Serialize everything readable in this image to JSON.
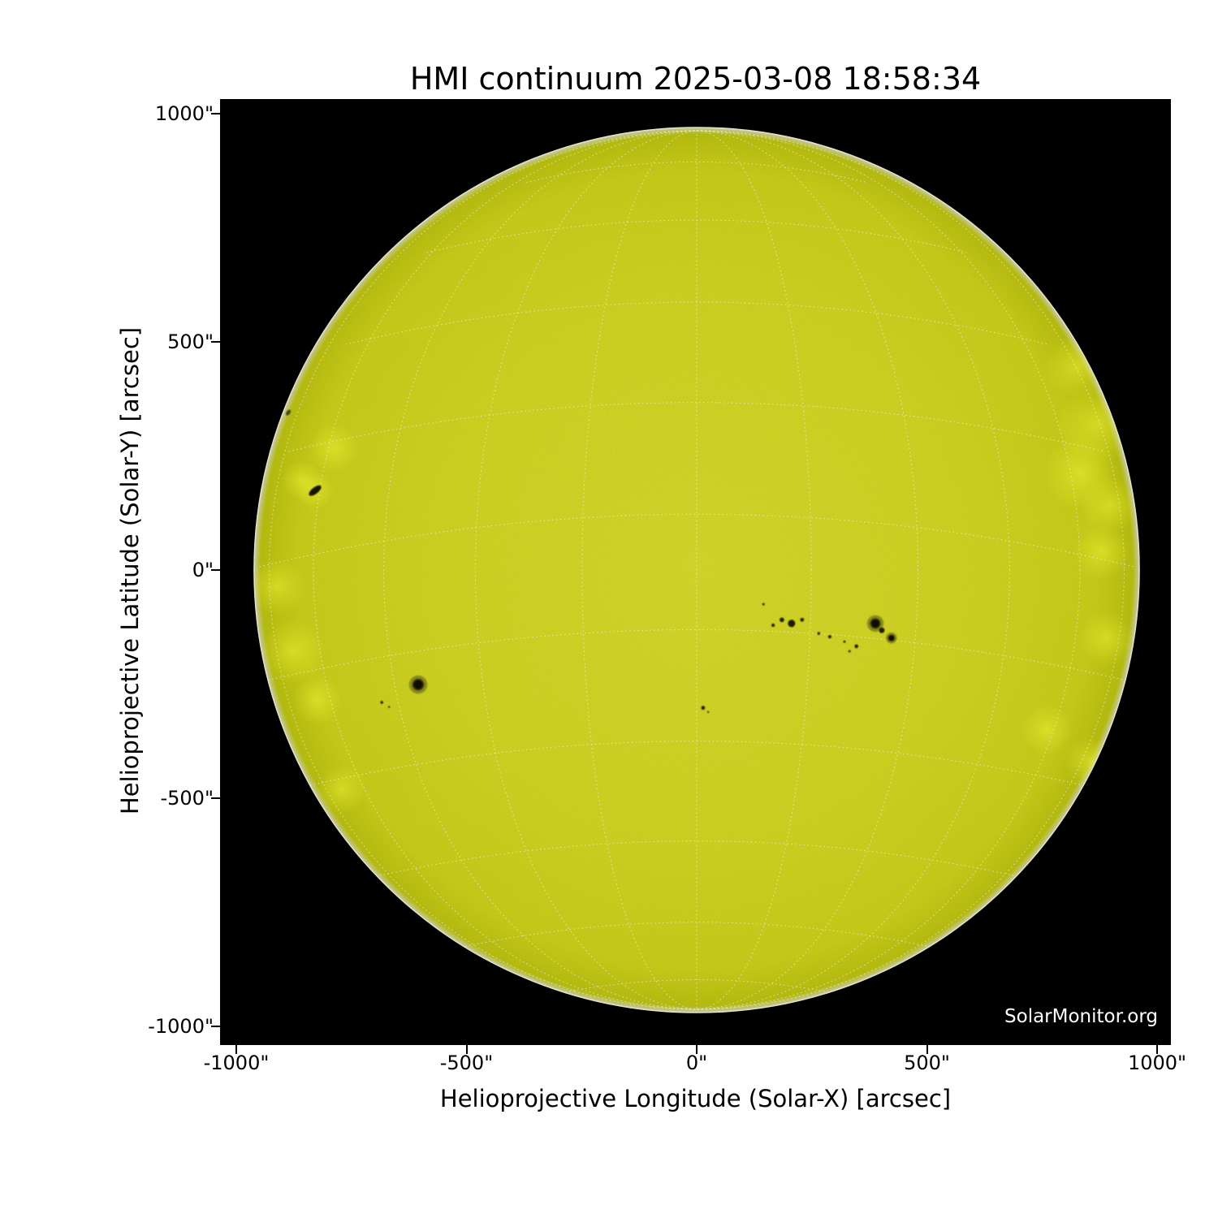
{
  "chart_data": {
    "type": "heatmap",
    "description": "Full-disk solar continuum image (SDO/HMI) rendered as a yellow solar disk on black background with dotted heliographic coordinate grid, sunspot groups and limb faculae",
    "title": "HMI continuum 2025-03-08 18:58:34",
    "xlabel": "Helioprojective Longitude (Solar-X) [arcsec]",
    "ylabel": "Helioprojective Latitude (Solar-Y) [arcsec]",
    "xlim": [
      -1035,
      1030
    ],
    "ylim": [
      -1040,
      1032
    ],
    "x_ticks": [
      {
        "value": -1000,
        "label": "-1000\""
      },
      {
        "value": -500,
        "label": "-500\""
      },
      {
        "value": 0,
        "label": "0\""
      },
      {
        "value": 500,
        "label": "500\""
      },
      {
        "value": 1000,
        "label": "1000\""
      }
    ],
    "y_ticks": [
      {
        "value": 1000,
        "label": "1000\""
      },
      {
        "value": 500,
        "label": "500\""
      },
      {
        "value": 0,
        "label": "0\""
      },
      {
        "value": -500,
        "label": "-500\""
      },
      {
        "value": -1000,
        "label": "-1000\""
      }
    ],
    "grid": {
      "kind": "heliographic",
      "spacing_deg": 15,
      "b0_deg": -7.25,
      "style": "dotted",
      "color": "#f2f2e6"
    },
    "solar_disk": {
      "center_arcsec": [
        0,
        0
      ],
      "radius_arcsec": 963,
      "fill_center": "#d2d32a",
      "fill_mid": "#cccf20",
      "fill_edge": "#b4ba0e",
      "limb_rim": "#e3e3d4",
      "background": "#000000",
      "speckle_dark": "#6b6b05",
      "speckle_light": "#ffff59"
    },
    "sunspots": [
      {
        "x": -829,
        "y": 174,
        "rx": 16,
        "ry": 7,
        "rot": -38,
        "color": "#181802"
      },
      {
        "x": -887,
        "y": 345,
        "rx": 7,
        "ry": 4,
        "rot": -55,
        "color": "#45450a"
      },
      {
        "x": -605,
        "y": -251,
        "penumbra_r": 20,
        "umbra_r": 10
      },
      {
        "x": -684,
        "y": -290,
        "r": 3
      },
      {
        "x": -668,
        "y": -300,
        "r": 2
      },
      {
        "x": 145,
        "y": -75,
        "r": 2.5
      },
      {
        "x": 166,
        "y": -121,
        "r": 3.5
      },
      {
        "x": 185,
        "y": -109,
        "r": 5
      },
      {
        "x": 206,
        "y": -117,
        "r": 8
      },
      {
        "x": 229,
        "y": -109,
        "r": 4
      },
      {
        "x": 265,
        "y": -139,
        "r": 3
      },
      {
        "x": 289,
        "y": -146,
        "r": 3.5
      },
      {
        "x": 321,
        "y": -157,
        "r": 2.5
      },
      {
        "x": 347,
        "y": -167,
        "r": 4
      },
      {
        "x": 332,
        "y": -178,
        "r": 2.5
      },
      {
        "x": 388,
        "y": -117,
        "penumbra_r": 18,
        "umbra_r": 9
      },
      {
        "x": 402,
        "y": -132,
        "r": 6
      },
      {
        "x": 423,
        "y": -149,
        "penumbra_r": 12,
        "umbra_r": 6
      },
      {
        "x": 14,
        "y": -302,
        "r": 4
      },
      {
        "x": 25,
        "y": -311,
        "r": 2
      }
    ],
    "faculae": [
      {
        "x": 825,
        "y": 445,
        "r": 70
      },
      {
        "x": 870,
        "y": 320,
        "r": 88
      },
      {
        "x": 834,
        "y": 213,
        "r": 80
      },
      {
        "x": 896,
        "y": 142,
        "r": 62
      },
      {
        "x": 880,
        "y": 40,
        "r": 60
      },
      {
        "x": 890,
        "y": -150,
        "r": 60
      },
      {
        "x": 855,
        "y": -420,
        "r": 55
      },
      {
        "x": -912,
        "y": -36,
        "r": 62
      },
      {
        "x": -877,
        "y": -178,
        "r": 70
      },
      {
        "x": -824,
        "y": -285,
        "r": 53
      },
      {
        "x": -788,
        "y": 267,
        "r": 53
      },
      {
        "x": -859,
        "y": 196,
        "r": 44
      },
      {
        "x": -829,
        "y": 174,
        "r": 40
      },
      {
        "x": -771,
        "y": -480,
        "r": 53
      },
      {
        "x": 760,
        "y": -350,
        "r": 55
      }
    ],
    "watermark": "SolarMonitor.org"
  }
}
